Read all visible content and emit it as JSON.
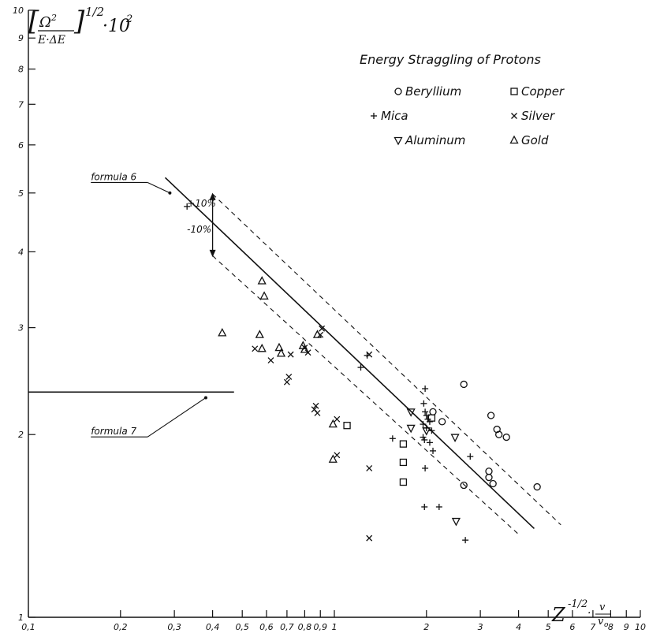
{
  "chart_data": {
    "type": "scatter",
    "title": "Energy Straggling of Protons",
    "ylabel_parts": [
      "Ω",
      "2",
      "E·ΔE",
      "1/2",
      "·10",
      "2"
    ],
    "xlabel_parts": [
      "Z",
      "-1/2",
      "·",
      "v",
      "v",
      "o"
    ],
    "x_scale": "log",
    "y_scale": "log",
    "xlim": [
      0.1,
      10
    ],
    "ylim": [
      1,
      10
    ],
    "grid": false,
    "legend_placement": "top-right",
    "x_ticks": [
      {
        "v": 0.1,
        "l": "0,1"
      },
      {
        "v": 0.2,
        "l": "0,2"
      },
      {
        "v": 0.3,
        "l": "0,3"
      },
      {
        "v": 0.4,
        "l": "0,4"
      },
      {
        "v": 0.5,
        "l": "0,5"
      },
      {
        "v": 0.6,
        "l": "0,6"
      },
      {
        "v": 0.7,
        "l": "0,7"
      },
      {
        "v": 0.8,
        "l": "0,8"
      },
      {
        "v": 0.9,
        "l": "0,9"
      },
      {
        "v": 1,
        "l": "1"
      },
      {
        "v": 2,
        "l": "2"
      },
      {
        "v": 3,
        "l": "3"
      },
      {
        "v": 4,
        "l": "4"
      },
      {
        "v": 5,
        "l": "5"
      },
      {
        "v": 6,
        "l": "6"
      },
      {
        "v": 7,
        "l": "7"
      },
      {
        "v": 8,
        "l": "8"
      },
      {
        "v": 9,
        "l": "9"
      },
      {
        "v": 10,
        "l": "10"
      }
    ],
    "y_ticks": [
      {
        "v": 1,
        "l": "1"
      },
      {
        "v": 2,
        "l": "2"
      },
      {
        "v": 3,
        "l": "3"
      },
      {
        "v": 4,
        "l": "4"
      },
      {
        "v": 5,
        "l": "5"
      },
      {
        "v": 6,
        "l": "6"
      },
      {
        "v": 7,
        "l": "7"
      },
      {
        "v": 8,
        "l": "8"
      },
      {
        "v": 9,
        "l": "9"
      },
      {
        "v": 10,
        "l": "10"
      }
    ],
    "series": [
      {
        "name": "Beryllium",
        "marker": "circle",
        "points": [
          [
            2.65,
            2.42
          ],
          [
            2.1,
            2.18
          ],
          [
            2.25,
            2.1
          ],
          [
            3.25,
            2.15
          ],
          [
            3.4,
            2.04
          ],
          [
            3.45,
            2.0
          ],
          [
            3.65,
            1.98
          ],
          [
            3.2,
            1.74
          ],
          [
            3.2,
            1.7
          ],
          [
            3.3,
            1.66
          ],
          [
            2.65,
            1.65
          ],
          [
            4.6,
            1.64
          ]
        ]
      },
      {
        "name": "Mica",
        "marker": "plus",
        "points": [
          [
            0.33,
            4.75
          ],
          [
            1.22,
            2.58
          ],
          [
            1.28,
            2.7
          ],
          [
            1.98,
            2.38
          ],
          [
            1.96,
            2.25
          ],
          [
            1.98,
            2.18
          ],
          [
            2.0,
            2.15
          ],
          [
            2.02,
            2.12
          ],
          [
            2.05,
            2.1
          ],
          [
            1.95,
            2.08
          ],
          [
            2.0,
            2.05
          ],
          [
            2.08,
            2.03
          ],
          [
            1.95,
            1.98
          ],
          [
            1.97,
            1.96
          ],
          [
            2.05,
            1.94
          ],
          [
            1.55,
            1.97
          ],
          [
            2.1,
            1.88
          ],
          [
            2.78,
            1.84
          ],
          [
            1.98,
            1.76
          ],
          [
            1.97,
            1.52
          ],
          [
            2.2,
            1.52
          ],
          [
            2.68,
            1.34
          ]
        ]
      },
      {
        "name": "Aluminum",
        "marker": "tri-down",
        "points": [
          [
            1.78,
            2.18
          ],
          [
            1.78,
            2.05
          ],
          [
            2.0,
            2.03
          ],
          [
            2.48,
            1.98
          ],
          [
            2.5,
            1.44
          ]
        ]
      },
      {
        "name": "Copper",
        "marker": "square",
        "points": [
          [
            1.1,
            2.07
          ],
          [
            1.68,
            1.93
          ],
          [
            1.68,
            1.8
          ],
          [
            1.68,
            1.67
          ],
          [
            2.08,
            2.13
          ]
        ]
      },
      {
        "name": "Silver",
        "marker": "x",
        "points": [
          [
            0.55,
            2.77
          ],
          [
            0.62,
            2.65
          ],
          [
            0.7,
            2.44
          ],
          [
            0.71,
            2.49
          ],
          [
            0.72,
            2.71
          ],
          [
            0.8,
            2.78
          ],
          [
            0.82,
            2.73
          ],
          [
            0.86,
            2.2
          ],
          [
            0.87,
            2.23
          ],
          [
            0.88,
            2.17
          ],
          [
            0.9,
            2.92
          ],
          [
            0.91,
            2.99
          ],
          [
            1.02,
            2.12
          ],
          [
            1.02,
            1.85
          ],
          [
            1.3,
            2.71
          ],
          [
            1.3,
            1.76
          ],
          [
            1.3,
            1.35
          ]
        ]
      },
      {
        "name": "Gold",
        "marker": "tri-up",
        "points": [
          [
            0.43,
            2.94
          ],
          [
            0.57,
            2.92
          ],
          [
            0.58,
            3.58
          ],
          [
            0.59,
            3.38
          ],
          [
            0.58,
            2.77
          ],
          [
            0.66,
            2.78
          ],
          [
            0.67,
            2.72
          ],
          [
            0.79,
            2.8
          ],
          [
            0.8,
            2.76
          ],
          [
            0.88,
            2.92
          ],
          [
            0.99,
            2.08
          ],
          [
            0.99,
            1.82
          ]
        ]
      }
    ],
    "lines": [
      {
        "name": "formula 6",
        "style": "solid",
        "points": [
          [
            0.28,
            5.3
          ],
          [
            4.5,
            1.4
          ]
        ]
      },
      {
        "name": "+10%",
        "style": "dashed",
        "points": [
          [
            0.4,
            4.98
          ],
          [
            5.5,
            1.42
          ]
        ]
      },
      {
        "name": "-10%",
        "style": "dashed",
        "points": [
          [
            0.4,
            3.94
          ],
          [
            4.0,
            1.37
          ]
        ]
      },
      {
        "name": "formula 7",
        "style": "solid",
        "points": [
          [
            0.1,
            2.35
          ],
          [
            0.47,
            2.35
          ]
        ]
      }
    ],
    "annotations": [
      {
        "text": "formula 6",
        "x": 0.16,
        "y": 5.25,
        "arrow_to": [
          0.29,
          5.0
        ]
      },
      {
        "text": "formula 7",
        "x": 0.16,
        "y": 2.0,
        "arrow_to": [
          0.38,
          2.3
        ]
      },
      {
        "text": "+10%",
        "x": 0.33,
        "y": 4.75
      },
      {
        "text": "-10%",
        "x": 0.33,
        "y": 4.3
      }
    ]
  }
}
